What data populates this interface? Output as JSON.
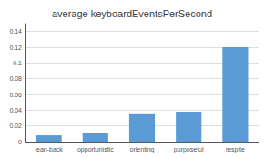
{
  "chart_data": {
    "type": "bar",
    "title": "average keyboardEventsPerSecond",
    "categories": [
      "lean-back",
      "opportunistic",
      "orienting",
      "purposeful",
      "respite"
    ],
    "values": [
      0.008,
      0.011,
      0.036,
      0.038,
      0.12
    ],
    "color": "#5B9BD5",
    "ylim": [
      0,
      0.15
    ],
    "yticks": [
      0,
      0.02,
      0.04,
      0.06,
      0.08,
      0.1,
      0.12,
      0.14
    ],
    "grid": true
  }
}
